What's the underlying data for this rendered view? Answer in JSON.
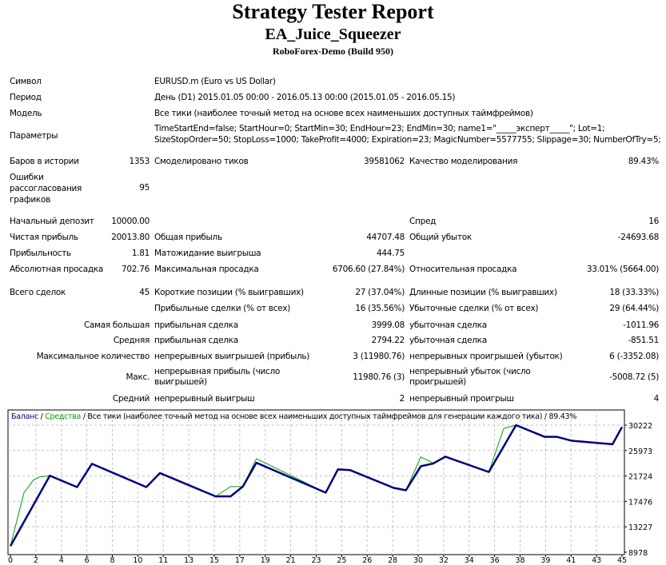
{
  "header": {
    "title": "Strategy Tester Report",
    "ea_name": "EA_Juice_Squeezer",
    "server": "RoboForex-Demo (Build 950)"
  },
  "info": {
    "symbol": {
      "label": "Символ",
      "value": "EURUSD.m (Euro vs US Dollar)"
    },
    "period": {
      "label": "Период",
      "value": "День (D1) 2015.01.05 00:00 - 2016.05.13 00:00 (2015.01.05 - 2016.05.15)"
    },
    "model": {
      "label": "Модель",
      "value": "Все тики (наиболее точный метод на основе всех наименьших доступных таймфреймов)"
    },
    "params": {
      "label": "Параметры",
      "line1": "TimeStartEnd=false; StartHour=0; StartMin=30; EndHour=23; EndMin=30; name1=\"_____эксперт_____\"; Lot=1;",
      "line2": "SizeStopOrder=50; StopLoss=1000; TakeProfit=4000; Expiration=23; MagicNumber=5577755; Slippage=30; NumberOfTry=5;"
    }
  },
  "stats": {
    "bars": {
      "label": "Баров в истории",
      "value": "1353"
    },
    "ticks": {
      "label": "Смоделировано тиков",
      "value": "39581062"
    },
    "quality": {
      "label": "Качество моделирования",
      "value": "89.43%"
    },
    "errors": {
      "label": "Ошибки рассогласования графиков",
      "value": "95"
    },
    "deposit": {
      "label": "Начальный депозит",
      "value": "10000.00"
    },
    "spread": {
      "label": "Спред",
      "value": "16"
    },
    "net_profit": {
      "label": "Чистая прибыль",
      "value": "20013.80"
    },
    "gross_profit": {
      "label": "Общая прибыль",
      "value": "44707.48"
    },
    "gross_loss": {
      "label": "Общий убыток",
      "value": "-24693.68"
    },
    "profit_factor": {
      "label": "Прибыльность",
      "value": "1.81"
    },
    "expected_payoff": {
      "label": "Матожидание выигрыша",
      "value": "444.75"
    },
    "abs_drawdown": {
      "label": "Абсолютная просадка",
      "value": "702.76"
    },
    "max_drawdown": {
      "label": "Максимальная просадка",
      "value": "6706.60 (27.84%)"
    },
    "rel_drawdown": {
      "label": "Относительная просадка",
      "value": "33.01% (5664.00)"
    },
    "total_trades": {
      "label": "Всего сделок",
      "value": "45"
    },
    "short_pos": {
      "label": "Короткие позиции (% выигравших)",
      "value": "27 (37.04%)"
    },
    "long_pos": {
      "label": "Длинные позиции (% выигравших)",
      "value": "18 (33.33%)"
    },
    "profit_trades": {
      "label": "Прибыльные сделки (% от всех)",
      "value": "16 (35.56%)"
    },
    "loss_trades": {
      "label": "Убыточные сделки (% от всех)",
      "value": "29 (64.44%)"
    },
    "largest": {
      "label": "Самая большая",
      "profit_label": "прибыльная сделка",
      "profit": "3999.08",
      "loss_label": "убыточная сделка",
      "loss": "-1011.96"
    },
    "average": {
      "label": "Средняя",
      "profit_label": "прибыльная сделка",
      "profit": "2794.22",
      "loss_label": "убыточная сделка",
      "loss": "-851.51"
    },
    "max_count": {
      "label": "Максимальное количество",
      "wins_label": "непрерывных выигрышей (прибыль)",
      "wins": "3 (11980.76)",
      "losses_label": "непрерывных проигрышей (убыток)",
      "losses": "6 (-3352.08)"
    },
    "max_cons": {
      "label": "Макс.",
      "profit_label": "непрерывная прибыль (число выигрышей)",
      "profit": "11980.76 (3)",
      "loss_label": "непрерывный убыток (число проигрышей)",
      "loss": "-5008.72 (5)"
    },
    "avg_cons": {
      "label": "Средний",
      "wins_label": "непрерывный выигрыш",
      "wins": "2",
      "losses_label": "непрерывный проигрыш",
      "losses": "4"
    }
  },
  "chart_data": {
    "type": "line",
    "title_balance": "Баланс",
    "sep": " / ",
    "title_equity": "Средства",
    "title_rest": " / Все тики (наиболее точный метод на основе всех наименьших доступных таймфреймов для генерации каждого тика) / 89.43%",
    "x_tick_labels": [
      "0",
      "2",
      "4",
      "6",
      "8",
      "10",
      "11",
      "13",
      "15",
      "17",
      "19",
      "21",
      "23",
      "25",
      "26",
      "28",
      "30",
      "32",
      "34",
      "36",
      "38",
      "39",
      "41",
      "43",
      "45"
    ],
    "y_tick_labels": [
      "30222",
      "25973",
      "21724",
      "17476",
      "13227",
      "8978"
    ],
    "ylim": [
      8978,
      30222
    ],
    "xlim": [
      0,
      45
    ],
    "grid": true,
    "colors": {
      "balance": "#000080",
      "equity": "#00A000",
      "grid": "#c0c0c0"
    },
    "series": [
      {
        "name": "Баланс",
        "points": [
          [
            0,
            10000
          ],
          [
            2.9,
            21770
          ],
          [
            4.9,
            19865
          ],
          [
            6.0,
            23760
          ],
          [
            10.0,
            19865
          ],
          [
            11.0,
            22210
          ],
          [
            15.1,
            18316
          ],
          [
            16.2,
            18316
          ],
          [
            17.1,
            19954
          ],
          [
            18.1,
            23937
          ],
          [
            23.2,
            18936
          ],
          [
            24.1,
            22830
          ],
          [
            25.0,
            22700
          ],
          [
            28.2,
            19733
          ],
          [
            29.1,
            19334
          ],
          [
            30.2,
            23362
          ],
          [
            31.1,
            23804
          ],
          [
            32.0,
            24955
          ],
          [
            35.2,
            22388
          ],
          [
            37.2,
            30222
          ],
          [
            39.3,
            28275
          ],
          [
            40.2,
            28275
          ],
          [
            41.3,
            27611
          ],
          [
            44.3,
            27035
          ],
          [
            45,
            29912
          ]
        ]
      },
      {
        "name": "Средства",
        "points": [
          [
            0,
            10000
          ],
          [
            1.0,
            18936
          ],
          [
            1.7,
            21060
          ],
          [
            2.2,
            21591
          ],
          [
            2.9,
            21770
          ],
          [
            4.9,
            19865
          ],
          [
            6.0,
            23760
          ],
          [
            10.0,
            19865
          ],
          [
            11.0,
            22210
          ],
          [
            15.1,
            18316
          ],
          [
            16.2,
            19954
          ],
          [
            17.1,
            19954
          ],
          [
            18.1,
            24600
          ],
          [
            19.2,
            23400
          ],
          [
            23.2,
            18936
          ],
          [
            24.1,
            22830
          ],
          [
            25.0,
            22700
          ],
          [
            28.2,
            19733
          ],
          [
            29.1,
            19334
          ],
          [
            30.2,
            24911
          ],
          [
            31.1,
            23900
          ],
          [
            32.0,
            24955
          ],
          [
            35.2,
            22388
          ],
          [
            36.3,
            29690
          ],
          [
            37.2,
            30222
          ],
          [
            39.3,
            28275
          ],
          [
            40.2,
            28275
          ],
          [
            41.3,
            27611
          ],
          [
            44.3,
            27035
          ],
          [
            45,
            29912
          ]
        ]
      }
    ]
  }
}
